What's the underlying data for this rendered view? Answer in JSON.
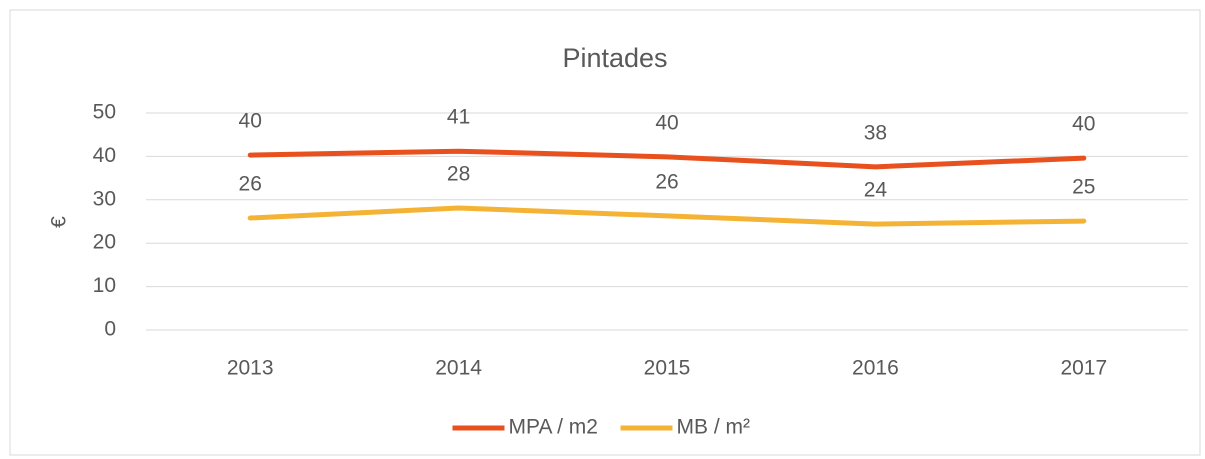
{
  "chart_data": {
    "type": "line",
    "title": "Pintades",
    "y_label": "€",
    "categories": [
      "2013",
      "2014",
      "2015",
      "2016",
      "2017"
    ],
    "series": [
      {
        "name": "MPA / m2",
        "color": "#e8501e",
        "values": [
          40.3,
          41.2,
          39.9,
          37.6,
          39.6
        ],
        "value_labels": [
          "40",
          "41",
          "40",
          "38",
          "40"
        ]
      },
      {
        "name": "MB / m²",
        "color": "#f5b335",
        "values": [
          25.8,
          28.1,
          26.3,
          24.4,
          25.1
        ],
        "value_labels": [
          "26",
          "28",
          "26",
          "24",
          "25"
        ]
      }
    ],
    "ylim": [
      0,
      50
    ],
    "yticks": [
      0,
      10,
      20,
      30,
      40,
      50
    ],
    "grid": true,
    "legend": "bottom"
  }
}
